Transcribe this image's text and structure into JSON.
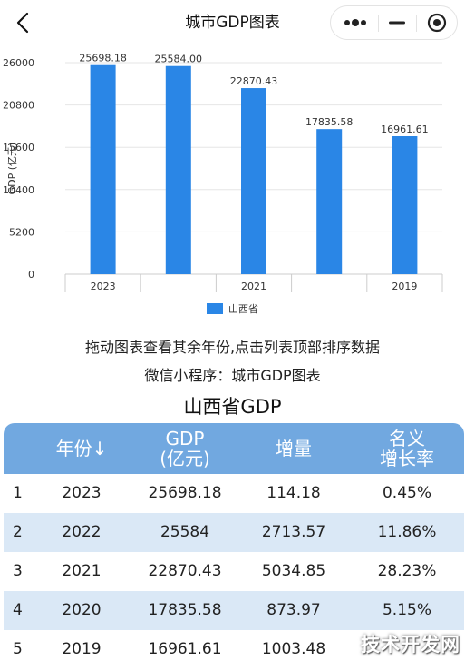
{
  "header": {
    "title": "城市GDP图表",
    "back_icon": "chevron-left-icon",
    "more_icon": "more-dots-icon",
    "minimize_icon": "minus-icon",
    "close_icon": "target-circle-icon"
  },
  "chart_data": {
    "type": "bar",
    "categories": [
      "2023",
      "2022",
      "2021",
      "2020",
      "2019"
    ],
    "x_tick_labels": [
      "2023",
      "",
      "2021",
      "",
      "2019"
    ],
    "series": [
      {
        "name": "山西省",
        "values": [
          25698.18,
          25584.0,
          22870.43,
          17835.58,
          16961.61
        ],
        "color": "#2a86e6"
      }
    ],
    "data_labels": [
      "25698.18",
      "25584.00",
      "22870.43",
      "17835.58",
      "16961.61"
    ],
    "y_ticks": [
      0,
      5200,
      10400,
      15600,
      20800,
      26000
    ],
    "ylim": [
      0,
      26000
    ],
    "ylabel": "GDP (亿元)",
    "grid": true,
    "legend_position": "bottom-center"
  },
  "captions": {
    "line1": "拖动图表查看其余年份,点击列表顶部排序数据",
    "line2": "微信小程序：城市GDP图表"
  },
  "table": {
    "title": "山西省GDP",
    "headers": {
      "year": "年份↓",
      "gdp_1": "GDP",
      "gdp_2": "(亿元)",
      "increase": "增量",
      "rate_1": "名义",
      "rate_2": "增长率"
    },
    "rows": [
      {
        "rank": "1",
        "year": "2023",
        "gdp": "25698.18",
        "increase": "114.18",
        "rate": "0.45%"
      },
      {
        "rank": "2",
        "year": "2022",
        "gdp": "25584",
        "increase": "2713.57",
        "rate": "11.86%"
      },
      {
        "rank": "3",
        "year": "2021",
        "gdp": "22870.43",
        "increase": "5034.85",
        "rate": "28.23%"
      },
      {
        "rank": "4",
        "year": "2020",
        "gdp": "17835.58",
        "increase": "873.97",
        "rate": "5.15%"
      },
      {
        "rank": "5",
        "year": "2019",
        "gdp": "16961.61",
        "increase": "1003.48",
        "rate": ""
      }
    ]
  },
  "watermark": "技术开发网",
  "colors": {
    "bar": "#2a86e6",
    "table_header": "#71a8e0",
    "row_alt": "#dae8f6"
  }
}
